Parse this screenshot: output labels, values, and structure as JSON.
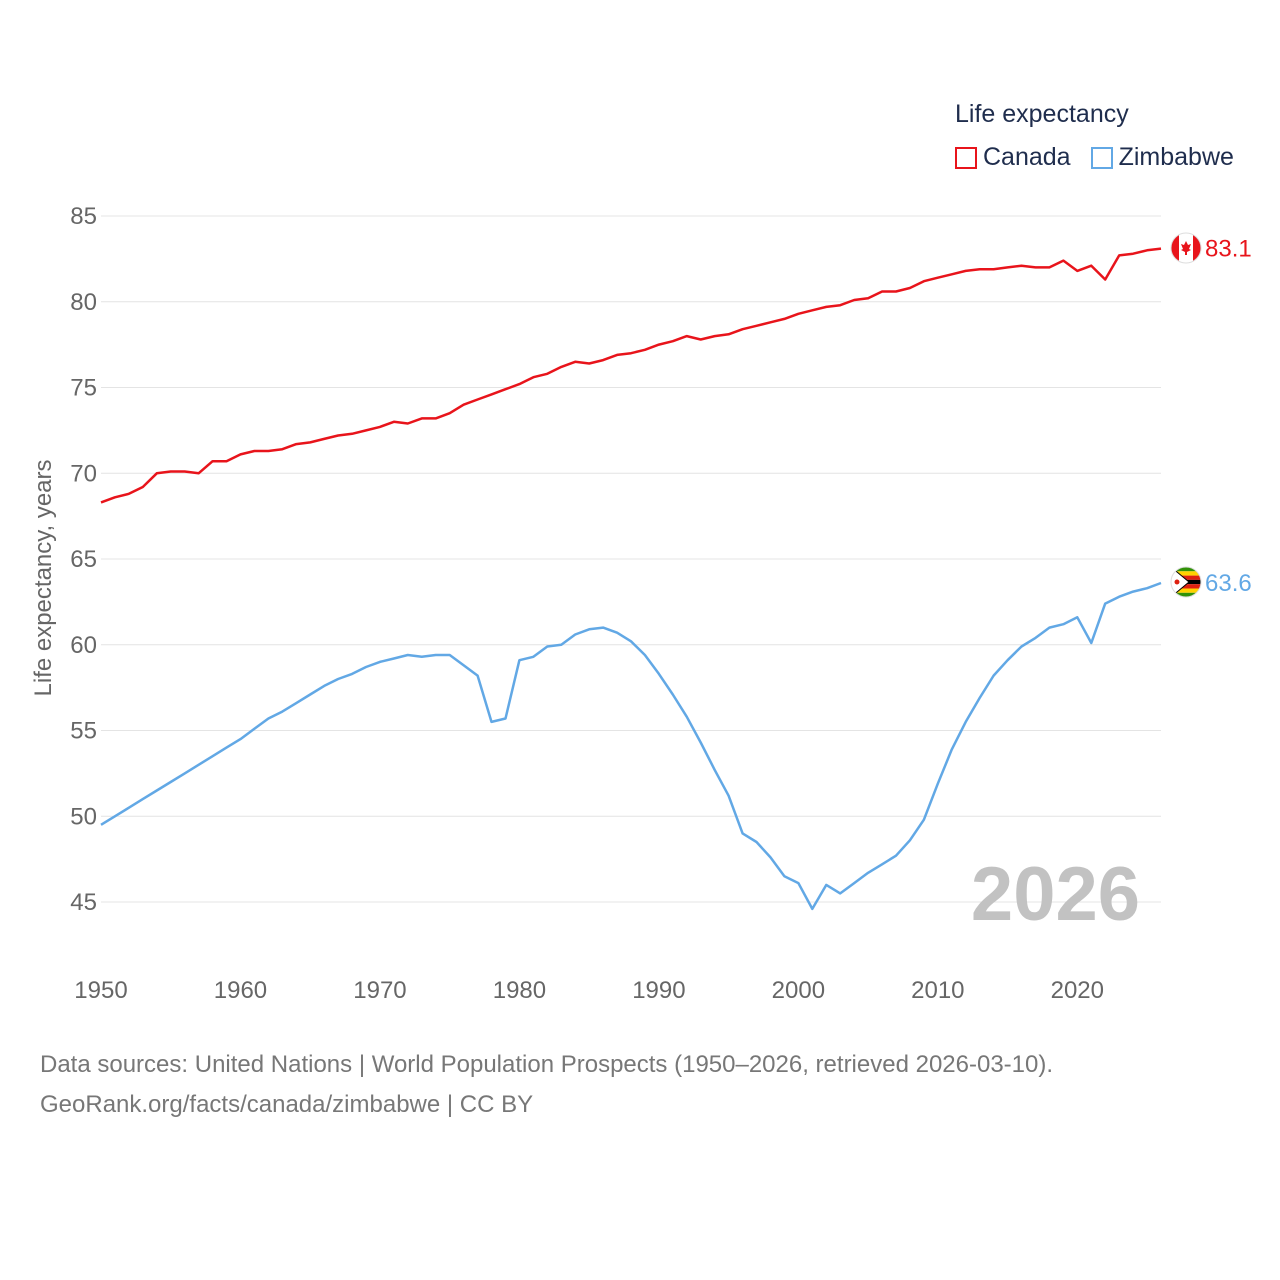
{
  "legend": {
    "title": "Life expectancy"
  },
  "source": {
    "line1": "Data sources: United Nations | World Population Prospects (1950–2026, retrieved 2026-03-10).",
    "line2": "GeoRank.org/facts/canada/zimbabwe | CC BY"
  },
  "chart_data": {
    "type": "line",
    "title": "Life expectancy",
    "xlabel": "",
    "ylabel": "Life expectancy, years",
    "xlim": [
      1950,
      2026
    ],
    "ylim": [
      43,
      86
    ],
    "yticks": [
      45,
      50,
      55,
      60,
      65,
      70,
      75,
      80,
      85
    ],
    "xticks": [
      1950,
      1960,
      1970,
      1980,
      1990,
      2000,
      2010,
      2020
    ],
    "grid": true,
    "legend_position": "top-right",
    "year_label": "2026",
    "series": [
      {
        "name": "Canada",
        "color": "#e8141b",
        "end_label": "83.1",
        "x": [
          1950,
          1951,
          1952,
          1953,
          1954,
          1955,
          1956,
          1957,
          1958,
          1959,
          1960,
          1961,
          1962,
          1963,
          1964,
          1965,
          1966,
          1967,
          1968,
          1969,
          1970,
          1971,
          1972,
          1973,
          1974,
          1975,
          1976,
          1977,
          1978,
          1979,
          1980,
          1981,
          1982,
          1983,
          1984,
          1985,
          1986,
          1987,
          1988,
          1989,
          1990,
          1991,
          1992,
          1993,
          1994,
          1995,
          1996,
          1997,
          1998,
          1999,
          2000,
          2001,
          2002,
          2003,
          2004,
          2005,
          2006,
          2007,
          2008,
          2009,
          2010,
          2011,
          2012,
          2013,
          2014,
          2015,
          2016,
          2017,
          2018,
          2019,
          2020,
          2021,
          2022,
          2023,
          2024,
          2025,
          2026
        ],
        "values": [
          68.3,
          68.6,
          68.8,
          69.2,
          70.0,
          70.1,
          70.1,
          70.0,
          70.7,
          70.7,
          71.1,
          71.3,
          71.3,
          71.4,
          71.7,
          71.8,
          72.0,
          72.2,
          72.3,
          72.5,
          72.7,
          73.0,
          72.9,
          73.2,
          73.2,
          73.5,
          74.0,
          74.3,
          74.6,
          74.9,
          75.2,
          75.6,
          75.8,
          76.2,
          76.5,
          76.4,
          76.6,
          76.9,
          77.0,
          77.2,
          77.5,
          77.7,
          78.0,
          77.8,
          78.0,
          78.1,
          78.4,
          78.6,
          78.8,
          79.0,
          79.3,
          79.5,
          79.7,
          79.8,
          80.1,
          80.2,
          80.6,
          80.6,
          80.8,
          81.2,
          81.4,
          81.6,
          81.8,
          81.9,
          81.9,
          82.0,
          82.1,
          82.0,
          82.0,
          82.4,
          81.8,
          82.1,
          81.3,
          82.7,
          82.8,
          83.0,
          83.1
        ]
      },
      {
        "name": "Zimbabwe",
        "color": "#62a8e5",
        "end_label": "63.6",
        "x": [
          1950,
          1951,
          1952,
          1953,
          1954,
          1955,
          1956,
          1957,
          1958,
          1959,
          1960,
          1961,
          1962,
          1963,
          1964,
          1965,
          1966,
          1967,
          1968,
          1969,
          1970,
          1971,
          1972,
          1973,
          1974,
          1975,
          1976,
          1977,
          1978,
          1979,
          1980,
          1981,
          1982,
          1983,
          1984,
          1985,
          1986,
          1987,
          1988,
          1989,
          1990,
          1991,
          1992,
          1993,
          1994,
          1995,
          1996,
          1997,
          1998,
          1999,
          2000,
          2001,
          2002,
          2003,
          2004,
          2005,
          2006,
          2007,
          2008,
          2009,
          2010,
          2011,
          2012,
          2013,
          2014,
          2015,
          2016,
          2017,
          2018,
          2019,
          2020,
          2021,
          2022,
          2023,
          2024,
          2025,
          2026
        ],
        "values": [
          49.5,
          50.0,
          50.5,
          51.0,
          51.5,
          52.0,
          52.5,
          53.0,
          53.5,
          54.0,
          54.5,
          55.1,
          55.7,
          56.1,
          56.6,
          57.1,
          57.6,
          58.0,
          58.3,
          58.7,
          59.0,
          59.2,
          59.4,
          59.3,
          59.4,
          59.4,
          58.8,
          58.2,
          55.5,
          55.7,
          59.1,
          59.3,
          59.9,
          60.0,
          60.6,
          60.9,
          61.0,
          60.7,
          60.2,
          59.4,
          58.3,
          57.1,
          55.8,
          54.3,
          52.7,
          51.2,
          49.0,
          48.5,
          47.6,
          46.5,
          46.1,
          44.6,
          46.0,
          45.5,
          46.1,
          46.7,
          47.2,
          47.7,
          48.6,
          49.8,
          51.9,
          53.9,
          55.5,
          56.9,
          58.2,
          59.1,
          59.9,
          60.4,
          61.0,
          61.2,
          61.6,
          60.1,
          62.4,
          62.8,
          63.1,
          63.3,
          63.6
        ]
      }
    ]
  }
}
